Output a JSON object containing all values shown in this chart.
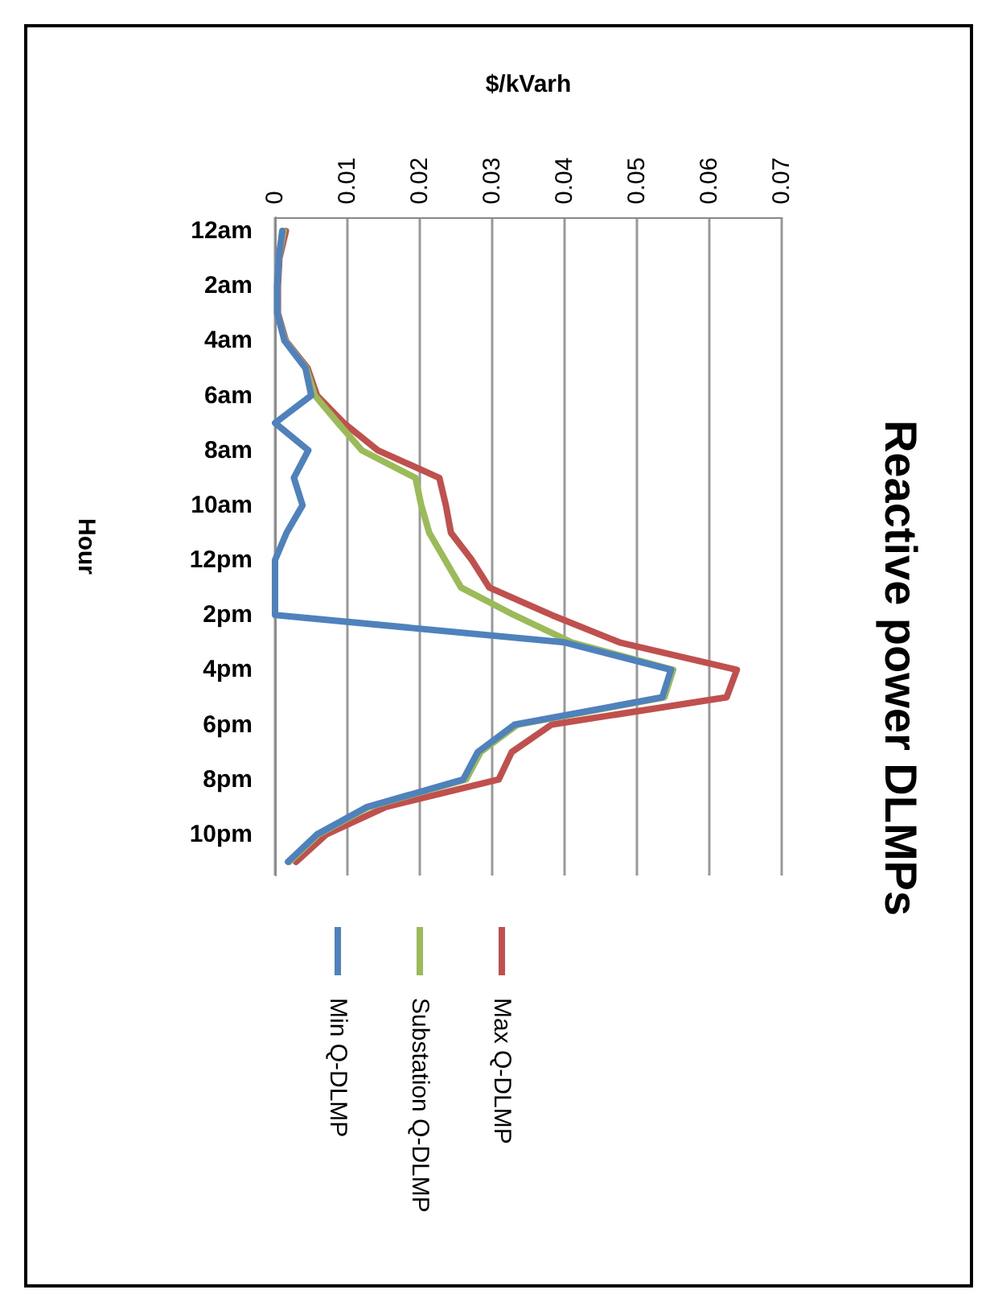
{
  "chart_data": {
    "type": "line",
    "title": "Reactive power DLMPs",
    "xlabel": "$/kVarh",
    "ylabel": "Hour",
    "categories": [
      "12am",
      null,
      "2am",
      null,
      "4am",
      null,
      "6am",
      null,
      "8am",
      null,
      "10am",
      null,
      "12pm",
      null,
      "2pm",
      null,
      "4pm",
      null,
      "6pm",
      null,
      "8pm",
      null,
      "10pm",
      null
    ],
    "series": [
      {
        "name": "Max Q-DLMP",
        "color": "#c0504d",
        "values": [
          0.0015,
          0.0006,
          0.0004,
          0.0004,
          0.0015,
          0.0045,
          0.0058,
          0.0095,
          0.0142,
          0.0227,
          0.0236,
          0.0243,
          0.0272,
          0.0296,
          0.0382,
          0.0476,
          0.0638,
          0.0624,
          0.0382,
          0.0327,
          0.0309,
          0.0153,
          0.0071,
          0.0029
        ]
      },
      {
        "name": "Substation Q-DLMP",
        "color": "#9bbb59",
        "values": [
          0.0012,
          0.0005,
          0.0003,
          0.0003,
          0.0014,
          0.0043,
          0.0055,
          0.0087,
          0.012,
          0.0194,
          0.0202,
          0.0213,
          0.0235,
          0.0257,
          0.033,
          0.041,
          0.055,
          0.0538,
          0.0335,
          0.0284,
          0.0264,
          0.013,
          0.006,
          0.002
        ]
      },
      {
        "name": "Min Q-DLMP",
        "color": "#4f81bd",
        "values": [
          0.001,
          0.0005,
          0.0003,
          0.0003,
          0.0013,
          0.0042,
          0.005,
          0,
          0.0046,
          0.0026,
          0.0038,
          0.0016,
          0,
          0,
          0,
          0.04,
          0.0547,
          0.0535,
          0.0331,
          0.028,
          0.026,
          0.0127,
          0.0058,
          0.0018
        ]
      }
    ],
    "orientation": "horizontal",
    "xlim": [
      0,
      0.07
    ],
    "xticks": [
      0,
      0.01,
      0.02,
      0.03,
      0.04,
      0.05,
      0.06,
      0.07
    ],
    "grid": "x",
    "legend": "bottom",
    "marker": "none"
  }
}
